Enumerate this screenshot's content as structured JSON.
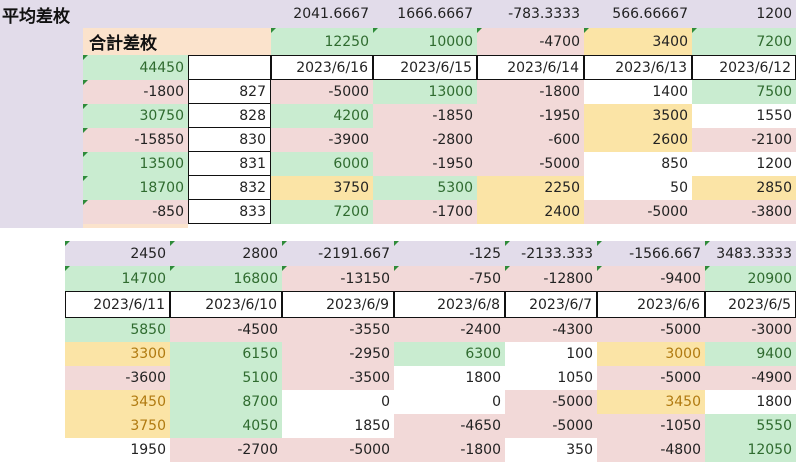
{
  "top": {
    "avg_label": "平均差枚",
    "total_label": "合計差枚",
    "grand_total": "44450",
    "avg": [
      "2041.6667",
      "1666.6667",
      "-783.3333",
      "566.66667",
      "1200"
    ],
    "totals": [
      "12250",
      "10000",
      "-4700",
      "3400",
      "7200"
    ],
    "dates": [
      "2023/6/16",
      "2023/6/15",
      "2023/6/14",
      "2023/6/13",
      "2023/6/12"
    ],
    "rows": [
      {
        "sum": "-1800",
        "no": "827",
        "v": [
          "-5000",
          "13000",
          "-1800",
          "1400",
          "7500"
        ]
      },
      {
        "sum": "30750",
        "no": "828",
        "v": [
          "4200",
          "-1850",
          "-1950",
          "3500",
          "1550"
        ]
      },
      {
        "sum": "-15850",
        "no": "830",
        "v": [
          "-3900",
          "-2800",
          "-600",
          "2600",
          "-2100"
        ]
      },
      {
        "sum": "13500",
        "no": "831",
        "v": [
          "6000",
          "-1950",
          "-5000",
          "850",
          "1200"
        ]
      },
      {
        "sum": "18700",
        "no": "832",
        "v": [
          "3750",
          "5300",
          "2250",
          "50",
          "2850"
        ]
      },
      {
        "sum": "-850",
        "no": "833",
        "v": [
          "7200",
          "-1700",
          "2400",
          "-5000",
          "-3800"
        ]
      }
    ]
  },
  "bottom": {
    "avg": [
      "2450",
      "2800",
      "-2191.667",
      "-125",
      "-2133.333",
      "-1566.667",
      "3483.3333"
    ],
    "totals": [
      "14700",
      "16800",
      "-13150",
      "-750",
      "-12800",
      "-9400",
      "20900"
    ],
    "dates": [
      "2023/6/11",
      "2023/6/10",
      "2023/6/9",
      "2023/6/8",
      "2023/6/7",
      "2023/6/6",
      "2023/6/5"
    ],
    "rows": [
      [
        "5850",
        "-4500",
        "-3550",
        "-2400",
        "-4300",
        "-5000",
        "-3000"
      ],
      [
        "3300",
        "6150",
        "-2950",
        "6300",
        "100",
        "3000",
        "9400"
      ],
      [
        "-3600",
        "5100",
        "-3500",
        "1800",
        "1050",
        "-5000",
        "-4900"
      ],
      [
        "3450",
        "8700",
        "0",
        "0",
        "-5000",
        "3450",
        "1800"
      ],
      [
        "3750",
        "4050",
        "1850",
        "-4650",
        "-5000",
        "-1050",
        "5550"
      ],
      [
        "1950",
        "-2700",
        "-5000",
        "-1800",
        "350",
        "-4800",
        "12050"
      ]
    ]
  }
}
